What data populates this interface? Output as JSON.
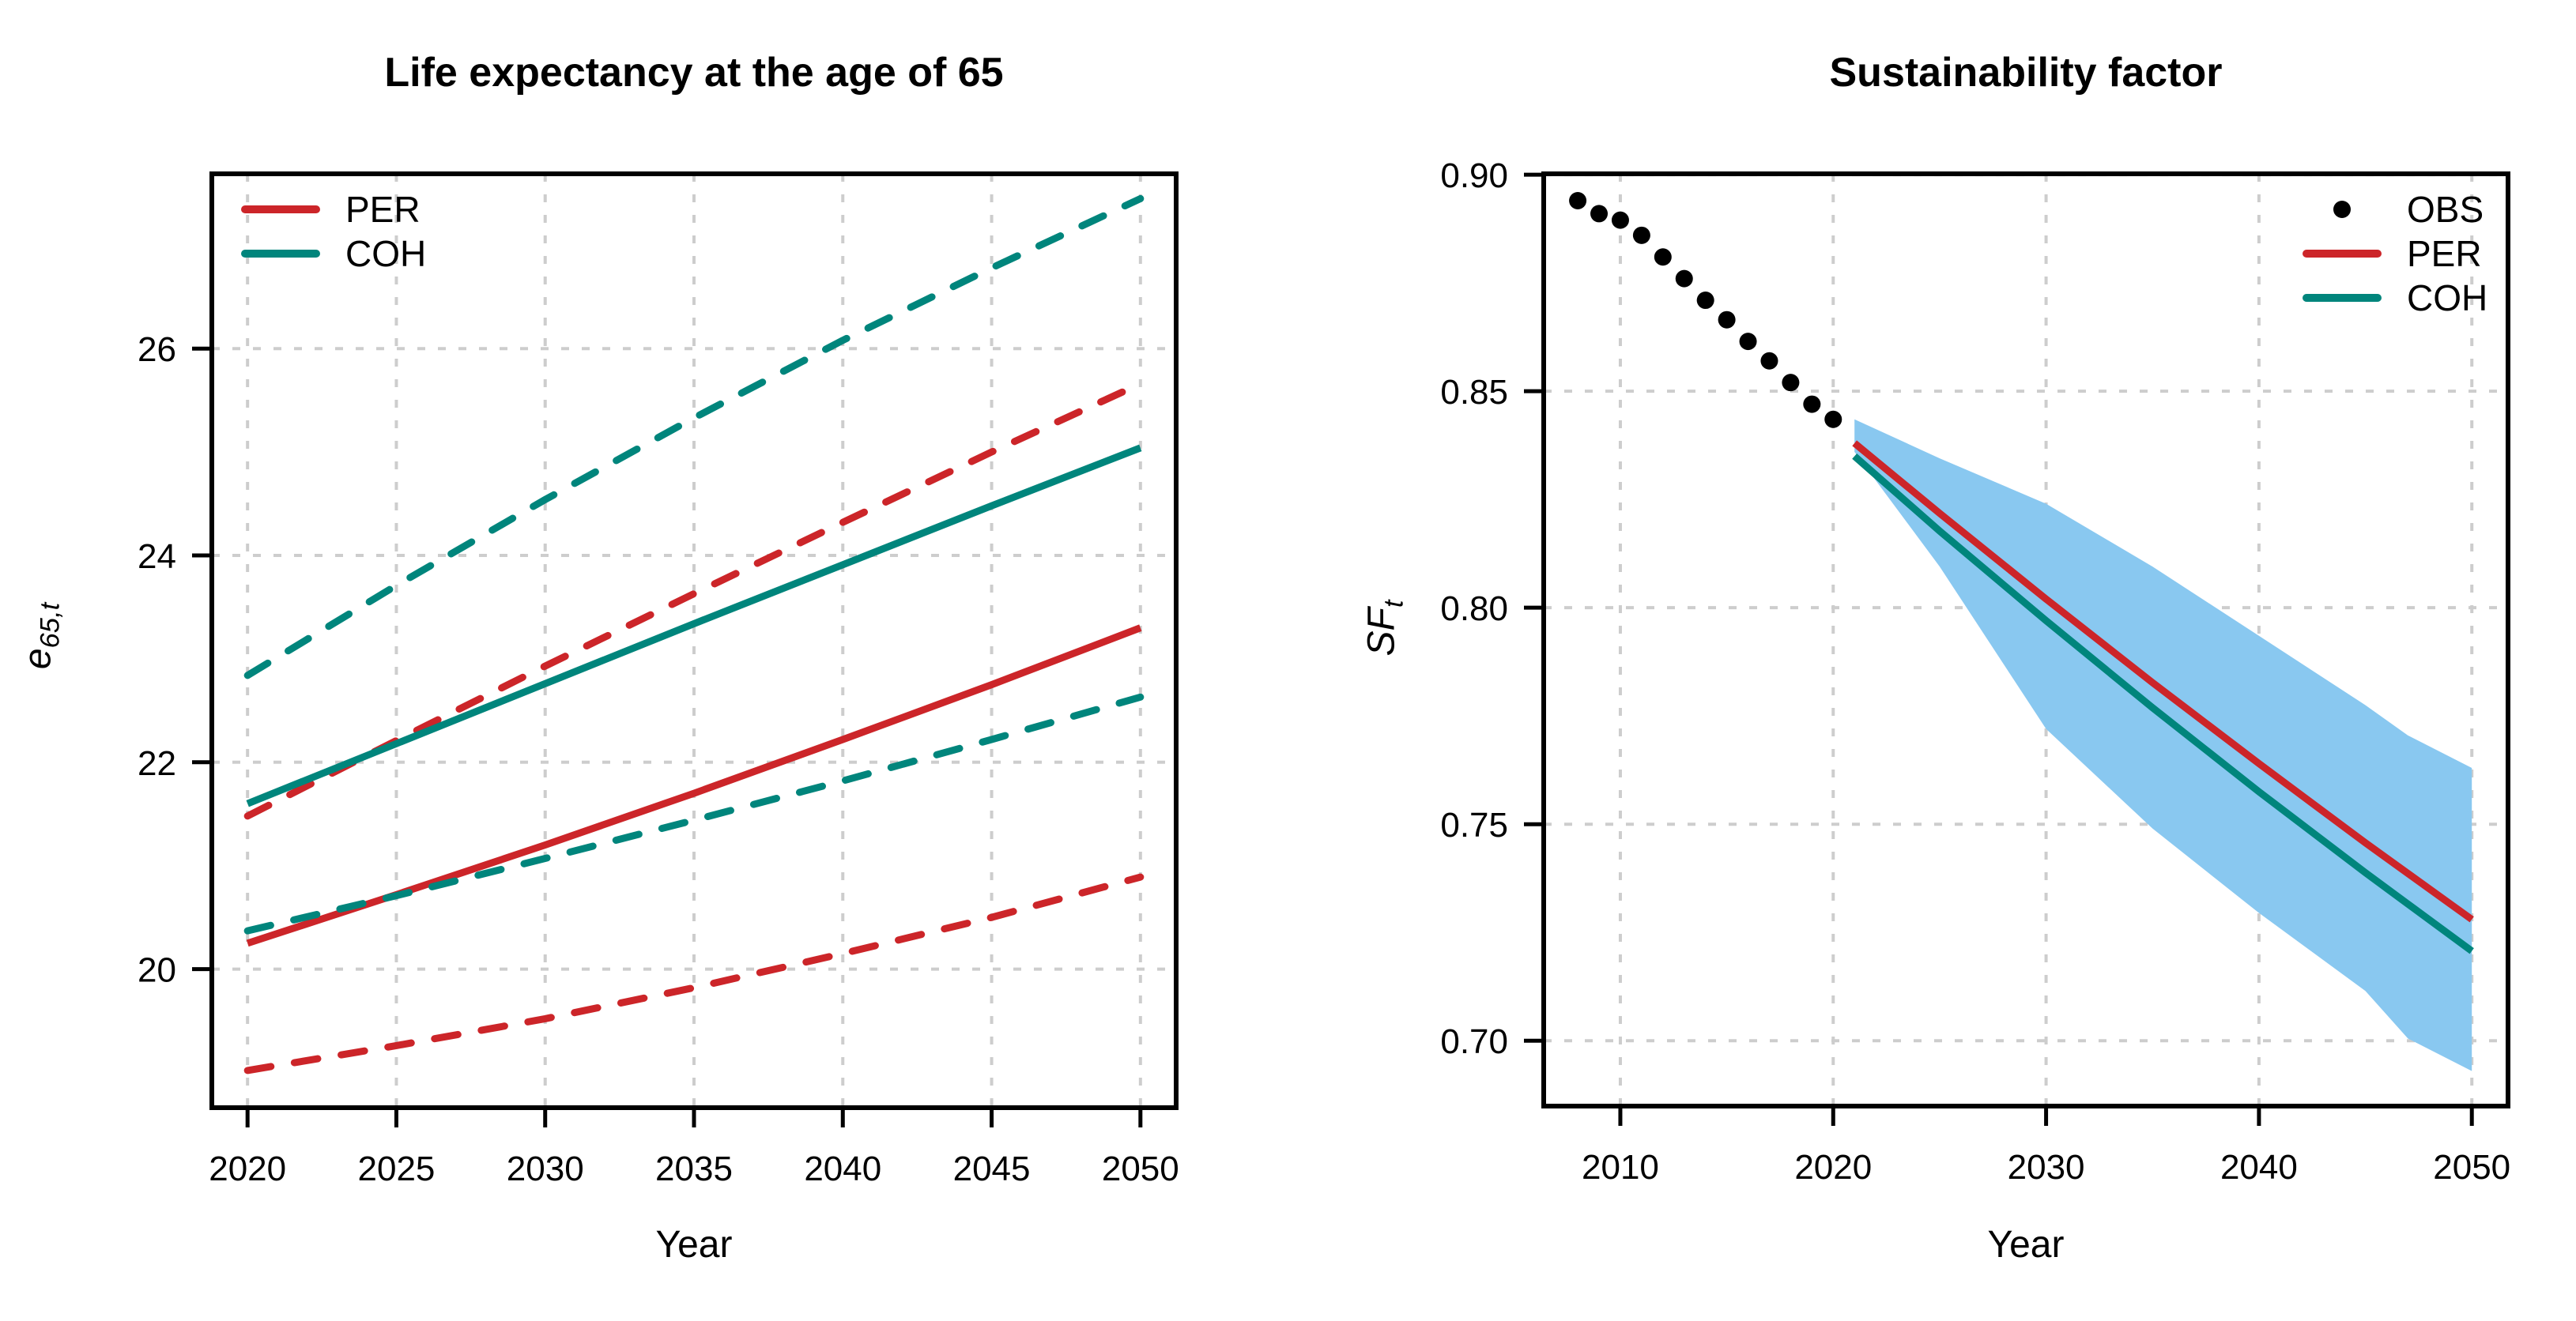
{
  "page": {
    "background": "#FFFFFF"
  },
  "colors": {
    "per": "#CC2529",
    "coh": "#00857C",
    "obs": "#000000",
    "band": "#89C8F0",
    "grid": "#CDCDCD",
    "axis": "#000000"
  },
  "chart_data": [
    {
      "type": "line",
      "title": "Life expectancy at the age of 65",
      "xlabel": "Year",
      "ylabel": {
        "main": "e",
        "sub": "65,t"
      },
      "xlim": [
        2018.8,
        2051.2
      ],
      "ylim": [
        18.66,
        27.69
      ],
      "xticks": [
        2020,
        2025,
        2030,
        2035,
        2040,
        2045,
        2050
      ],
      "xtick_labels": [
        "2020",
        "2025",
        "2030",
        "2035",
        "2040",
        "2045",
        "2050"
      ],
      "yticks": [
        20,
        22,
        24,
        26
      ],
      "ytick_labels": [
        "20",
        "22",
        "24",
        "26"
      ],
      "grid": true,
      "legend": {
        "position": "top-left",
        "items": [
          {
            "label": "PER",
            "color": "per",
            "marker": "line"
          },
          {
            "label": "COH",
            "color": "coh",
            "marker": "line"
          }
        ]
      },
      "x": [
        2020,
        2025,
        2030,
        2035,
        2040,
        2045,
        2050
      ],
      "series": [
        {
          "name": "PER central forecast",
          "color": "per",
          "style": "solid",
          "values": [
            20.25,
            20.72,
            21.2,
            21.7,
            22.22,
            22.75,
            23.3
          ]
        },
        {
          "name": "PER upper 95% bound",
          "color": "per",
          "style": "dashed",
          "values": [
            21.48,
            22.21,
            22.93,
            23.63,
            24.32,
            25.0,
            25.66
          ]
        },
        {
          "name": "PER lower 95% bound",
          "color": "per",
          "style": "dashed",
          "values": [
            19.02,
            19.26,
            19.52,
            19.82,
            20.15,
            20.5,
            20.89
          ]
        },
        {
          "name": "COH central forecast",
          "color": "coh",
          "style": "solid",
          "values": [
            21.6,
            22.18,
            22.76,
            23.34,
            23.91,
            24.48,
            25.04
          ]
        },
        {
          "name": "COH upper 95% bound",
          "color": "coh",
          "style": "dashed",
          "values": [
            22.84,
            23.71,
            24.54,
            25.33,
            26.08,
            26.78,
            27.45
          ]
        },
        {
          "name": "COH lower 95% bound",
          "color": "coh",
          "style": "dashed",
          "values": [
            20.37,
            20.71,
            21.07,
            21.44,
            21.82,
            22.22,
            22.63
          ]
        }
      ]
    },
    {
      "type": "line",
      "title": "Sustainability factor",
      "xlabel": "Year",
      "ylabel": {
        "main": "SF",
        "sub": "t"
      },
      "xlim": [
        2006.4,
        2051.7
      ],
      "ylim": [
        0.6849,
        0.9002
      ],
      "xticks": [
        2010,
        2020,
        2030,
        2040,
        2050
      ],
      "xtick_labels": [
        "2010",
        "2020",
        "2030",
        "2040",
        "2050"
      ],
      "yticks": [
        0.7,
        0.75,
        0.8,
        0.85,
        0.9
      ],
      "ytick_labels": [
        "0.70",
        "0.75",
        "0.80",
        "0.85",
        "0.90"
      ],
      "grid": true,
      "legend": {
        "position": "top-right",
        "items": [
          {
            "label": "OBS",
            "color": "obs",
            "marker": "point"
          },
          {
            "label": "PER",
            "color": "per",
            "marker": "line"
          },
          {
            "label": "COH",
            "color": "coh",
            "marker": "line"
          }
        ]
      },
      "points": {
        "name": "OBS observed values",
        "color": "obs",
        "x": [
          2008,
          2009,
          2010,
          2011,
          2012,
          2013,
          2014,
          2015,
          2016,
          2017,
          2018,
          2019,
          2020
        ],
        "y": [
          0.894,
          0.891,
          0.8895,
          0.886,
          0.881,
          0.876,
          0.871,
          0.8665,
          0.8615,
          0.857,
          0.852,
          0.847,
          0.8435
        ]
      },
      "band": {
        "name": "95% prediction interval",
        "color": "band",
        "x": [
          2021,
          2025,
          2030,
          2035,
          2040,
          2045,
          2047,
          2050
        ],
        "upper": [
          0.8435,
          0.8345,
          0.824,
          0.8095,
          0.7935,
          0.7775,
          0.7705,
          0.763
        ],
        "lower": [
          0.836,
          0.8095,
          0.772,
          0.749,
          0.7295,
          0.7115,
          0.7005,
          0.693
        ]
      },
      "x": [
        2021,
        2025,
        2030,
        2035,
        2040,
        2045,
        2050
      ],
      "series": [
        {
          "name": "PER central forecast",
          "color": "per",
          "style": "solid",
          "values": [
            0.838,
            0.8218,
            0.802,
            0.7827,
            0.764,
            0.7457,
            0.728
          ]
        },
        {
          "name": "COH central forecast",
          "color": "coh",
          "style": "solid",
          "values": [
            0.835,
            0.8177,
            0.797,
            0.7769,
            0.7575,
            0.7388,
            0.7207
          ]
        }
      ]
    }
  ]
}
